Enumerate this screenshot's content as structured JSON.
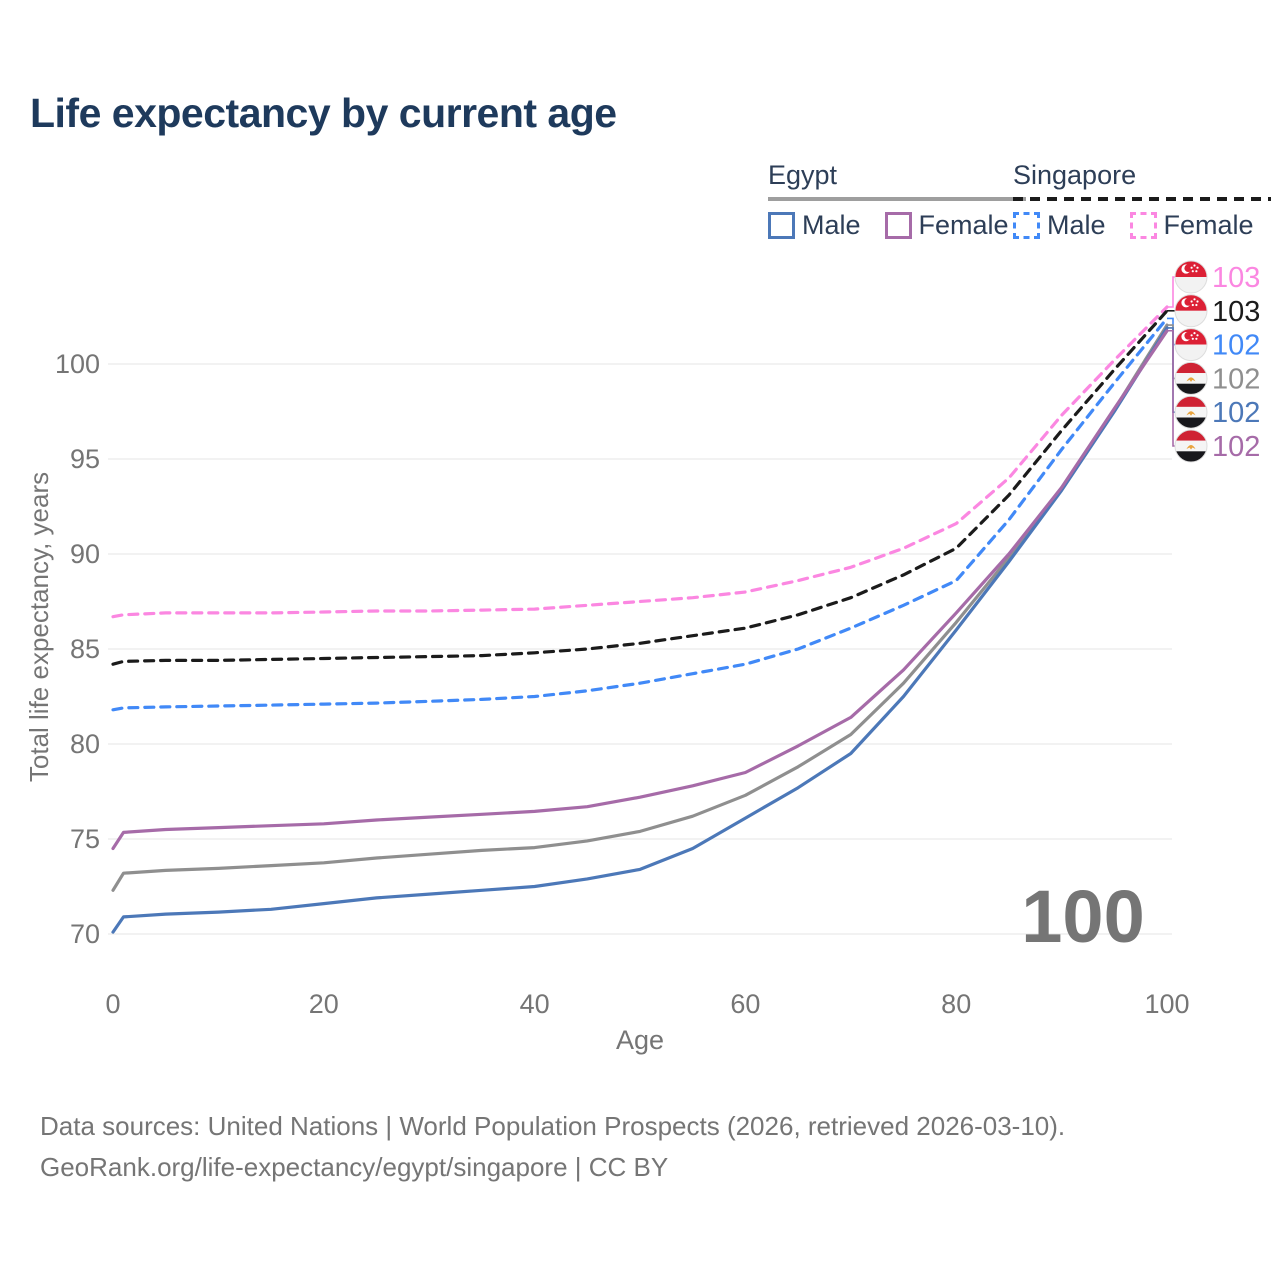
{
  "title": "Life expectancy by current age",
  "legend": {
    "groups": [
      {
        "label": "Egypt",
        "underline_style": "solid",
        "items": [
          {
            "label": "Male",
            "color": "#4C78B8",
            "dashed": false
          },
          {
            "label": "Female",
            "color": "#A66BA8",
            "dashed": false
          }
        ]
      },
      {
        "label": "Singapore",
        "underline_style": "dashed",
        "items": [
          {
            "label": "Male",
            "color": "#4189F7",
            "dashed": true
          },
          {
            "label": "Female",
            "color": "#FB87E1",
            "dashed": true
          }
        ]
      }
    ]
  },
  "chart_data": {
    "type": "line",
    "title": "Life expectancy by current age",
    "xlabel": "Age",
    "ylabel": "Total life expectancy, years",
    "xlim": [
      0,
      100
    ],
    "ylim": [
      70,
      100
    ],
    "x_ticks": [
      0,
      20,
      40,
      60,
      80,
      100
    ],
    "y_ticks": [
      70,
      75,
      80,
      85,
      90,
      95,
      100
    ],
    "grid": "horizontal-only",
    "legend_position": "top-right",
    "watermark": "100",
    "x": [
      0,
      1,
      5,
      10,
      15,
      20,
      25,
      30,
      35,
      40,
      45,
      50,
      55,
      60,
      65,
      70,
      75,
      80,
      85,
      90,
      95,
      100
    ],
    "series": [
      {
        "name": "Singapore Female",
        "country": "Singapore",
        "sex": "Female",
        "color": "#FB87E1",
        "dashed": true,
        "flag": "sg",
        "end_label": "103",
        "values": [
          86.7,
          86.8,
          86.9,
          86.9,
          86.9,
          86.95,
          87.0,
          87.0,
          87.05,
          87.1,
          87.3,
          87.5,
          87.7,
          88.0,
          88.6,
          89.3,
          90.3,
          91.6,
          94.0,
          97.3,
          100.2,
          103.0
        ]
      },
      {
        "name": "Singapore Both sexes",
        "country": "Singapore",
        "sex": "Total",
        "color": "#1b1b1b",
        "dashed": true,
        "flag": "sg",
        "end_label": "103",
        "values": [
          84.2,
          84.35,
          84.4,
          84.4,
          84.45,
          84.5,
          84.55,
          84.6,
          84.65,
          84.8,
          85.0,
          85.3,
          85.7,
          86.1,
          86.8,
          87.7,
          88.9,
          90.3,
          93.1,
          96.5,
          99.7,
          102.8
        ]
      },
      {
        "name": "Singapore Male",
        "country": "Singapore",
        "sex": "Male",
        "color": "#4189F7",
        "dashed": true,
        "flag": "sg",
        "end_label": "102",
        "values": [
          81.8,
          81.9,
          81.95,
          82.0,
          82.05,
          82.1,
          82.15,
          82.25,
          82.35,
          82.5,
          82.8,
          83.2,
          83.7,
          84.2,
          85.0,
          86.1,
          87.3,
          88.6,
          91.8,
          95.5,
          99.0,
          102.4
        ]
      },
      {
        "name": "Egypt Both sexes",
        "country": "Egypt",
        "sex": "Total",
        "color": "#8F8F8F",
        "dashed": false,
        "flag": "eg",
        "end_label": "102",
        "values": [
          72.3,
          73.2,
          73.35,
          73.45,
          73.6,
          73.75,
          74.0,
          74.2,
          74.4,
          74.55,
          74.9,
          75.4,
          76.2,
          77.3,
          78.8,
          80.5,
          83.2,
          86.4,
          89.8,
          93.4,
          97.6,
          102.05
        ]
      },
      {
        "name": "Egypt Male",
        "country": "Egypt",
        "sex": "Male",
        "color": "#4C78B8",
        "dashed": false,
        "flag": "eg",
        "end_label": "102",
        "values": [
          70.1,
          70.9,
          71.05,
          71.15,
          71.3,
          71.6,
          71.9,
          72.1,
          72.3,
          72.5,
          72.9,
          73.4,
          74.5,
          76.1,
          77.7,
          79.5,
          82.5,
          86.0,
          89.6,
          93.35,
          97.5,
          101.9
        ]
      },
      {
        "name": "Egypt Female",
        "country": "Egypt",
        "sex": "Female",
        "color": "#A66BA8",
        "dashed": false,
        "flag": "eg",
        "end_label": "102",
        "values": [
          74.5,
          75.35,
          75.5,
          75.6,
          75.7,
          75.8,
          76.0,
          76.15,
          76.3,
          76.45,
          76.7,
          77.2,
          77.8,
          78.5,
          79.9,
          81.4,
          83.9,
          86.9,
          90.0,
          93.5,
          97.65,
          101.75
        ]
      }
    ]
  },
  "footer": {
    "line1": "Data sources: United Nations | World Population Prospects (2026, retrieved 2026-03-10).",
    "line2": "GeoRank.org/life-expectancy/egypt/singapore | CC BY"
  }
}
